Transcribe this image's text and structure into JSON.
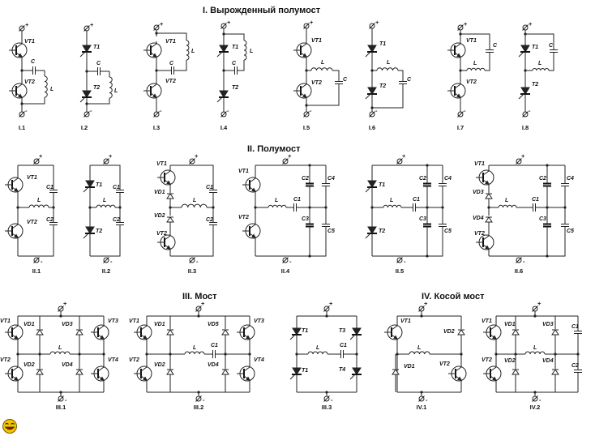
{
  "sections": [
    {
      "id": "I",
      "title": "I. Вырожденный полумост",
      "circuits": [
        {
          "id": "I.1",
          "caption": "I.1",
          "kind": "deg-tr"
        },
        {
          "id": "I.2",
          "caption": "I.2",
          "kind": "deg-th"
        },
        {
          "id": "I.3",
          "caption": "I.3",
          "kind": "deg-tr-top"
        },
        {
          "id": "I.4",
          "caption": "I.4",
          "kind": "deg-th-top"
        },
        {
          "id": "I.5",
          "caption": "I.5",
          "kind": "deg-tr-mid"
        },
        {
          "id": "I.6",
          "caption": "I.6",
          "kind": "deg-th-mid"
        },
        {
          "id": "I.7",
          "caption": "I.7",
          "kind": "deg-tr-c"
        },
        {
          "id": "I.8",
          "caption": "I.8",
          "kind": "deg-th-c"
        }
      ]
    },
    {
      "id": "II",
      "title": "II. Полумост",
      "circuits": [
        {
          "id": "II.1",
          "caption": "II.1",
          "kind": "half-tr"
        },
        {
          "id": "II.2",
          "caption": "II.2",
          "kind": "half-th"
        },
        {
          "id": "II.3",
          "caption": "II.3",
          "kind": "half-tr-diode"
        },
        {
          "id": "II.4",
          "caption": "II.4",
          "kind": "half-tr-4c"
        },
        {
          "id": "II.5",
          "caption": "II.5",
          "kind": "half-th-4c"
        },
        {
          "id": "II.6",
          "caption": "II.6",
          "kind": "half-trd-4c"
        }
      ]
    },
    {
      "id": "III",
      "title": "III. Мост",
      "circuits": [
        {
          "id": "III.1",
          "caption": "III.1",
          "kind": "bridge-tr"
        },
        {
          "id": "III.2",
          "caption": "III.2",
          "kind": "bridge-tr-c"
        },
        {
          "id": "III.3",
          "caption": "III.3",
          "kind": "bridge-th"
        }
      ]
    },
    {
      "id": "IV",
      "title": "IV. Косой мост",
      "circuits": [
        {
          "id": "IV.1",
          "caption": "IV.1",
          "kind": "skew"
        },
        {
          "id": "IV.2",
          "caption": "IV.2",
          "kind": "skew-c"
        }
      ]
    }
  ],
  "symbols": {
    "plus": "+",
    "minus": "-"
  },
  "labels": {
    "VT1": "VT1",
    "VT2": "VT2",
    "VT3": "VT3",
    "VT4": "VT4",
    "T1": "T1",
    "T2": "T2",
    "T3": "T3",
    "T4": "T4",
    "VD1": "VD1",
    "VD2": "VD2",
    "VD3": "VD3",
    "VD4": "VD4",
    "VD5": "VD5",
    "C": "C",
    "C1": "C1",
    "C2": "C2",
    "C3": "C3",
    "C4": "C4",
    "C5": "C5",
    "L": "L"
  },
  "icons": {
    "smiley": "smiley-icon"
  },
  "colors": {
    "ink": "#222222",
    "background": "#ffffff",
    "smiley": "#f3c400"
  }
}
